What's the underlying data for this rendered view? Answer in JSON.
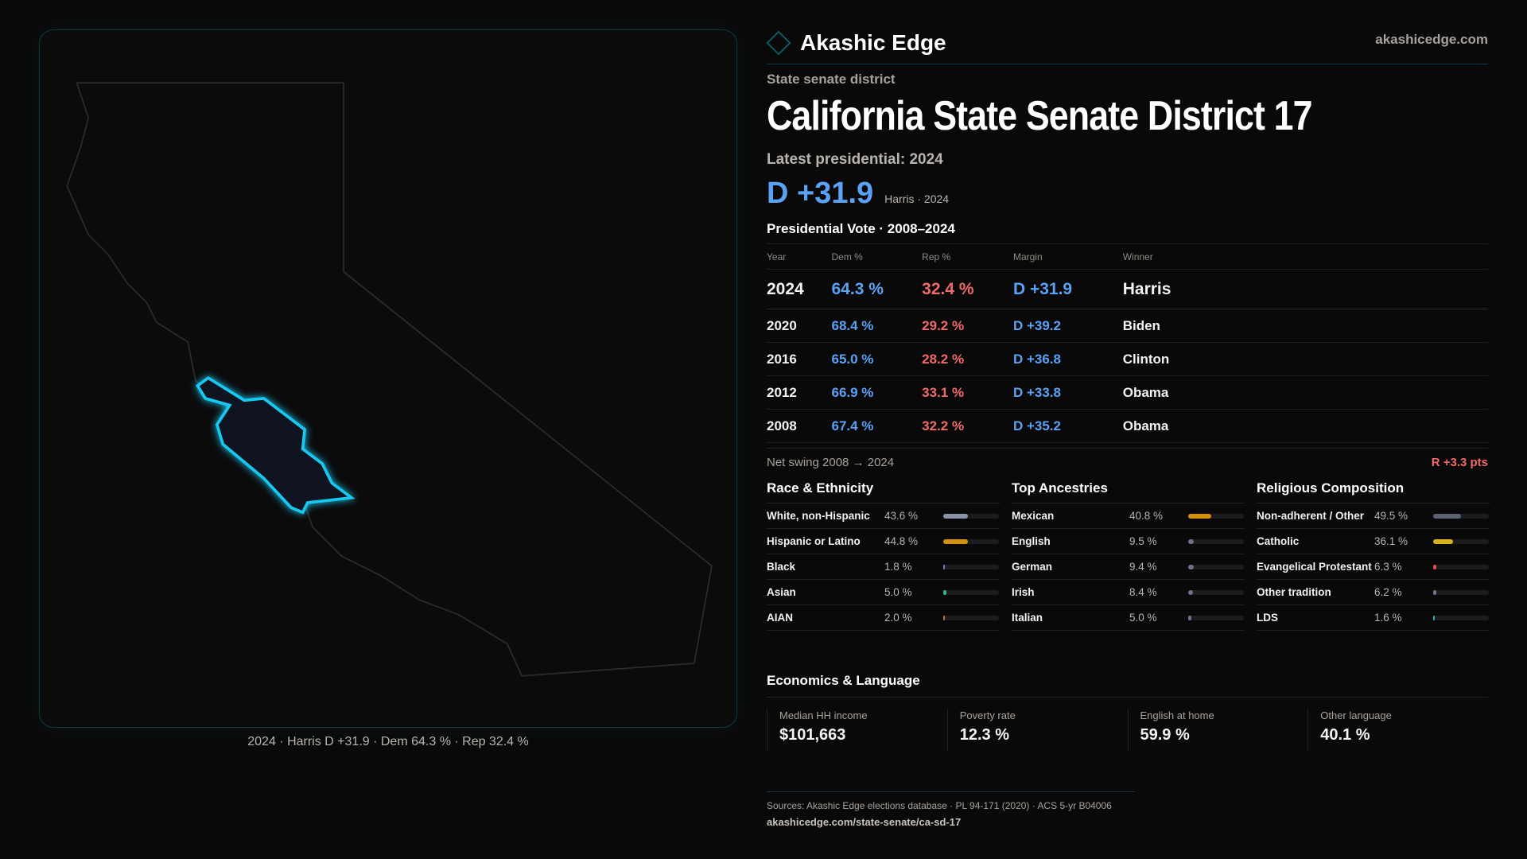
{
  "brand": {
    "name": "Akashic Edge",
    "site": "akashicedge.com"
  },
  "map": {
    "caption": "2024 · Harris D +31.9 · Dem 64.3 % · Rep 32.4 %",
    "district_color": "#19c8f0"
  },
  "header": {
    "kicker": "State senate district",
    "title": "California State Senate District 17",
    "latest": "Latest presidential: 2024",
    "margin": "D +31.9",
    "margin_sub": "Harris · 2024"
  },
  "colors": {
    "dem": "#5aa2f5",
    "rep": "#f06a6a"
  },
  "presidential": {
    "title": "Presidential Vote · 2008–2024",
    "headers": [
      "Year",
      "Dem %",
      "Rep %",
      "Margin",
      "Winner"
    ],
    "rows": [
      [
        "2024",
        "64.3 %",
        "32.4 %",
        "D +31.9",
        "Harris"
      ],
      [
        "2020",
        "68.4 %",
        "29.2 %",
        "D +39.2",
        "Biden"
      ],
      [
        "2016",
        "65.0 %",
        "28.2 %",
        "D +36.8",
        "Clinton"
      ],
      [
        "2012",
        "66.9 %",
        "33.1 %",
        "D +33.8",
        "Obama"
      ],
      [
        "2008",
        "67.4 %",
        "32.2 %",
        "D +35.2",
        "Obama"
      ]
    ]
  },
  "swing": {
    "label": "Net swing 2008 → 2024",
    "value": "R +3.3 pts"
  },
  "sections": [
    {
      "title": "Race & Ethnicity",
      "items": [
        {
          "label": "White, non-Hispanic",
          "value": "43.6 %",
          "pct": 43.6,
          "color": "#8a94a8"
        },
        {
          "label": "Hispanic or Latino",
          "value": "44.8 %",
          "pct": 44.8,
          "color": "#d4900f"
        },
        {
          "label": "Black",
          "value": "1.8 %",
          "pct": 1.8,
          "color": "#7b6fd0"
        },
        {
          "label": "Asian",
          "value": "5.0 %",
          "pct": 5.0,
          "color": "#2fb87a"
        },
        {
          "label": "AIAN",
          "value": "2.0 %",
          "pct": 2.0,
          "color": "#c0702a"
        }
      ]
    },
    {
      "title": "Top Ancestries",
      "items": [
        {
          "label": "Mexican",
          "value": "40.8 %",
          "pct": 40.8,
          "color": "#d4900f"
        },
        {
          "label": "English",
          "value": "9.5 %",
          "pct": 9.5,
          "color": "#6b7488"
        },
        {
          "label": "German",
          "value": "9.4 %",
          "pct": 9.4,
          "color": "#6b7488"
        },
        {
          "label": "Irish",
          "value": "8.4 %",
          "pct": 8.4,
          "color": "#6b7488"
        },
        {
          "label": "Italian",
          "value": "5.0 %",
          "pct": 5.0,
          "color": "#6b7488"
        }
      ]
    },
    {
      "title": "Religious Composition",
      "items": [
        {
          "label": "Non-adherent / Other",
          "value": "49.5 %",
          "pct": 49.5,
          "color": "#5d6272"
        },
        {
          "label": "Catholic",
          "value": "36.1 %",
          "pct": 36.1,
          "color": "#d8b020"
        },
        {
          "label": "Evangelical Protestant",
          "value": "6.3 %",
          "pct": 6.3,
          "color": "#e05050"
        },
        {
          "label": "Other tradition",
          "value": "6.2 %",
          "pct": 6.2,
          "color": "#6b7488"
        },
        {
          "label": "LDS",
          "value": "1.6 %",
          "pct": 1.6,
          "color": "#2ab0b0"
        }
      ]
    }
  ],
  "economics": {
    "title": "Economics & Language",
    "cards": [
      {
        "label": "Median HH income",
        "value": "$101,663"
      },
      {
        "label": "Poverty rate",
        "value": "12.3 %"
      },
      {
        "label": "English at home",
        "value": "59.9 %"
      },
      {
        "label": "Other language",
        "value": "40.1 %"
      }
    ]
  },
  "footer": {
    "sources": "Sources: Akashic Edge elections database · PL 94-171 (2020) · ACS 5-yr B04006",
    "url": "akashicedge.com/state-senate/ca-sd-17"
  }
}
